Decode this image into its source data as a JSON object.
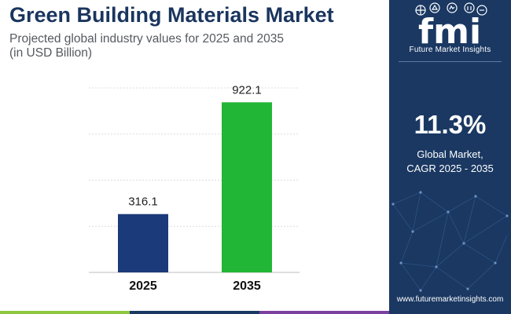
{
  "header": {
    "title": "Green Building Materials Market",
    "subtitle_line1": "Projected global industry values for 2025 and 2035",
    "subtitle_line2": "(in USD Billion)"
  },
  "sidebar": {
    "logo_text": "fmi",
    "brand_name": "Future Market Insights",
    "cagr_value": "11.3%",
    "cagr_label_line1": "Global Market,",
    "cagr_label_line2": "CAGR 2025 - 2035",
    "website": "www.futuremarketinsights.com"
  },
  "colors": {
    "title": "#1a355e",
    "sidebar_bg": "#1a3862",
    "bar_2025": "#1a3a7a",
    "bar_2035": "#22b636",
    "strip": [
      "#8dc63f",
      "#1a3862",
      "#7b3fa0"
    ]
  },
  "chart_data": {
    "type": "bar",
    "title": "Green Building Materials Market",
    "xlabel": "",
    "ylabel": "USD Billion",
    "categories": [
      "2025",
      "2035"
    ],
    "values": [
      316.1,
      922.1
    ],
    "value_labels": [
      "316.1",
      "922.1"
    ],
    "ylim": [
      0,
      1000
    ],
    "grid": true,
    "legend": "none"
  }
}
